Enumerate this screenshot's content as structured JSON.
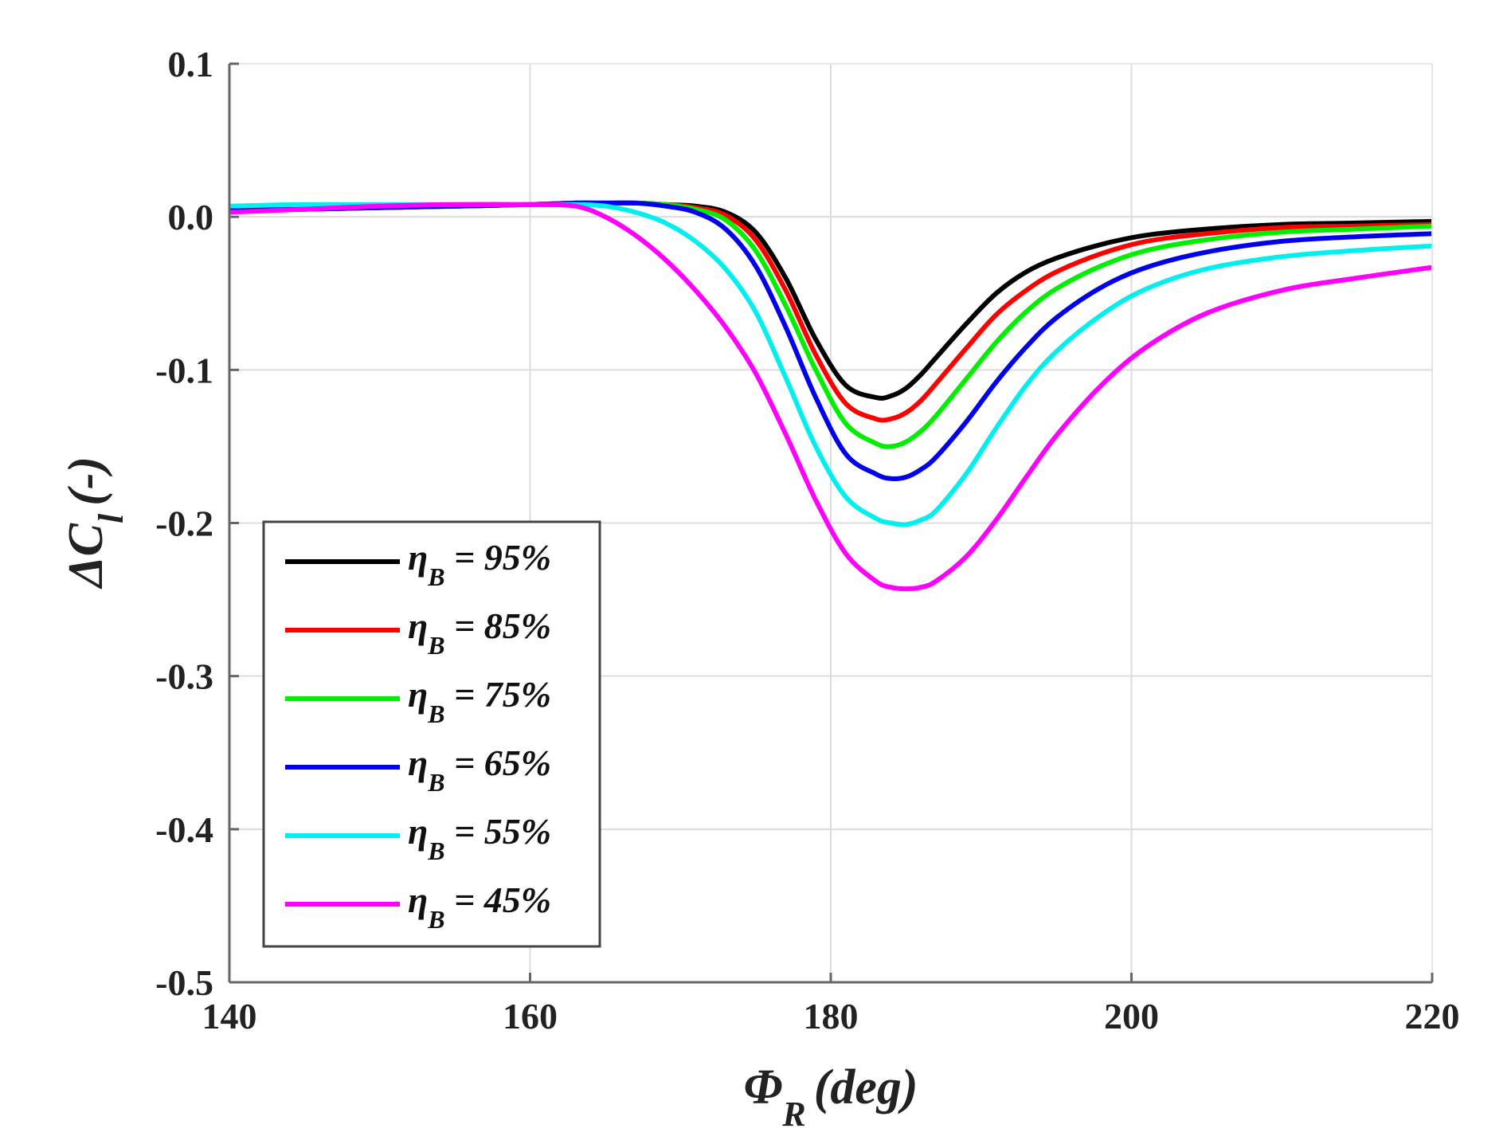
{
  "chart_data": {
    "type": "line",
    "title": "",
    "xlabel": {
      "symbol": "Φ",
      "subscript": "R",
      "unit": "(deg)"
    },
    "ylabel": {
      "symbol": "ΔC",
      "subscript": "l",
      "unit": "(-)"
    },
    "xlim": [
      140,
      220
    ],
    "ylim": [
      -0.5,
      0.1
    ],
    "xticks": [
      140,
      160,
      180,
      200,
      220
    ],
    "xtick_labels": [
      "140",
      "160",
      "180",
      "200",
      "220"
    ],
    "yticks": [
      0.1,
      0.0,
      -0.1,
      -0.2,
      -0.3,
      -0.4,
      -0.5
    ],
    "ytick_labels": [
      "0.1",
      "0.0",
      "-0.1",
      "-0.2",
      "-0.3",
      "-0.4",
      "-0.5"
    ],
    "grid": true,
    "legend_position": "bottom-left",
    "x": [
      140,
      145,
      150,
      155,
      160,
      163,
      165,
      167,
      169,
      171,
      173,
      175,
      177,
      179,
      181,
      183,
      184,
      185,
      186,
      187,
      189,
      191,
      193,
      195,
      198,
      201,
      205,
      210,
      215,
      220
    ],
    "series": [
      {
        "name": "η_B = 95%",
        "legend_symbol": "η",
        "legend_sub": "B",
        "legend_rest": " = 95%",
        "color": "#000000",
        "values": [
          0.004,
          0.005,
          0.006,
          0.007,
          0.008,
          0.009,
          0.009,
          0.009,
          0.008,
          0.007,
          0.003,
          -0.01,
          -0.04,
          -0.08,
          -0.11,
          -0.118,
          -0.117,
          -0.112,
          -0.103,
          -0.092,
          -0.07,
          -0.05,
          -0.036,
          -0.027,
          -0.018,
          -0.012,
          -0.008,
          -0.005,
          -0.004,
          -0.003
        ]
      },
      {
        "name": "η_B = 85%",
        "legend_symbol": "η",
        "legend_sub": "B",
        "legend_rest": " = 85%",
        "color": "#ff0000",
        "values": [
          0.004,
          0.005,
          0.006,
          0.007,
          0.008,
          0.009,
          0.009,
          0.009,
          0.008,
          0.006,
          0.001,
          -0.015,
          -0.048,
          -0.09,
          -0.122,
          -0.132,
          -0.132,
          -0.128,
          -0.12,
          -0.109,
          -0.086,
          -0.064,
          -0.048,
          -0.036,
          -0.024,
          -0.016,
          -0.011,
          -0.007,
          -0.006,
          -0.005
        ]
      },
      {
        "name": "η_B = 75%",
        "legend_symbol": "η",
        "legend_sub": "B",
        "legend_rest": " = 75%",
        "color": "#00ee00",
        "values": [
          0.004,
          0.005,
          0.006,
          0.007,
          0.008,
          0.009,
          0.009,
          0.009,
          0.008,
          0.005,
          -0.002,
          -0.022,
          -0.058,
          -0.1,
          -0.135,
          -0.148,
          -0.15,
          -0.147,
          -0.14,
          -0.13,
          -0.106,
          -0.082,
          -0.062,
          -0.047,
          -0.032,
          -0.022,
          -0.015,
          -0.01,
          -0.008,
          -0.006
        ]
      },
      {
        "name": "η_B = 65%",
        "legend_symbol": "η",
        "legend_sub": "B",
        "legend_rest": " = 65%",
        "color": "#0000ee",
        "values": [
          0.004,
          0.005,
          0.006,
          0.007,
          0.008,
          0.009,
          0.009,
          0.009,
          0.007,
          0.003,
          -0.008,
          -0.032,
          -0.072,
          -0.118,
          -0.155,
          -0.168,
          -0.171,
          -0.17,
          -0.165,
          -0.157,
          -0.134,
          -0.108,
          -0.085,
          -0.066,
          -0.046,
          -0.033,
          -0.023,
          -0.016,
          -0.013,
          -0.011
        ]
      },
      {
        "name": "η_B = 55%",
        "legend_symbol": "η",
        "legend_sub": "B",
        "legend_rest": " = 55%",
        "color": "#00f0f0",
        "values": [
          0.007,
          0.008,
          0.008,
          0.008,
          0.008,
          0.008,
          0.007,
          0.003,
          -0.004,
          -0.016,
          -0.034,
          -0.062,
          -0.105,
          -0.15,
          -0.183,
          -0.197,
          -0.2,
          -0.201,
          -0.198,
          -0.192,
          -0.168,
          -0.138,
          -0.11,
          -0.088,
          -0.064,
          -0.047,
          -0.034,
          -0.026,
          -0.022,
          -0.019
        ]
      },
      {
        "name": "η_B = 45%",
        "legend_symbol": "η",
        "legend_sub": "B",
        "legend_rest": " = 45%",
        "color": "#ff00ff",
        "values": [
          0.003,
          0.005,
          0.007,
          0.008,
          0.008,
          0.007,
          0.0,
          -0.012,
          -0.028,
          -0.048,
          -0.072,
          -0.102,
          -0.142,
          -0.185,
          -0.22,
          -0.238,
          -0.242,
          -0.243,
          -0.242,
          -0.238,
          -0.222,
          -0.198,
          -0.17,
          -0.143,
          -0.11,
          -0.085,
          -0.063,
          -0.048,
          -0.04,
          -0.033
        ]
      }
    ]
  }
}
